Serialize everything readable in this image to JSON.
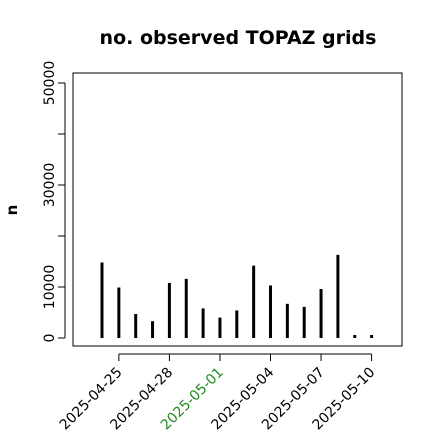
{
  "chart_data": {
    "type": "bar",
    "title": "no. observed TOPAZ grids",
    "xlabel": "",
    "ylabel": "n",
    "ylim": [
      0,
      52000
    ],
    "y_ticks": [
      {
        "value": 0,
        "label": "0"
      },
      {
        "value": 10000,
        "label": "10000"
      },
      {
        "value": 20000,
        "label": ""
      },
      {
        "value": 30000,
        "label": "30000"
      },
      {
        "value": 40000,
        "label": ""
      },
      {
        "value": 50000,
        "label": "50000"
      }
    ],
    "x_ticks": [
      {
        "label": "2025-04-25",
        "color": "#000000"
      },
      {
        "label": "2025-04-28",
        "color": "#000000"
      },
      {
        "label": "2025-05-01",
        "color": "#228B22"
      },
      {
        "label": "2025-05-04",
        "color": "#000000"
      },
      {
        "label": "2025-05-07",
        "color": "#000000"
      },
      {
        "label": "2025-05-10",
        "color": "#000000"
      }
    ],
    "x": [
      "2025-04-24",
      "2025-04-25",
      "2025-04-26",
      "2025-04-27",
      "2025-04-28",
      "2025-04-29",
      "2025-04-30",
      "2025-05-01",
      "2025-05-02",
      "2025-05-03",
      "2025-05-04",
      "2025-05-05",
      "2025-05-06",
      "2025-05-07",
      "2025-05-08",
      "2025-05-09",
      "2025-05-10"
    ],
    "values": [
      14800,
      9900,
      4700,
      3300,
      10800,
      11600,
      5800,
      4000,
      5400,
      14200,
      10300,
      6700,
      6100,
      9600,
      16300,
      300,
      300
    ],
    "bar_color": "#000000",
    "grid": false,
    "legend": "none"
  }
}
